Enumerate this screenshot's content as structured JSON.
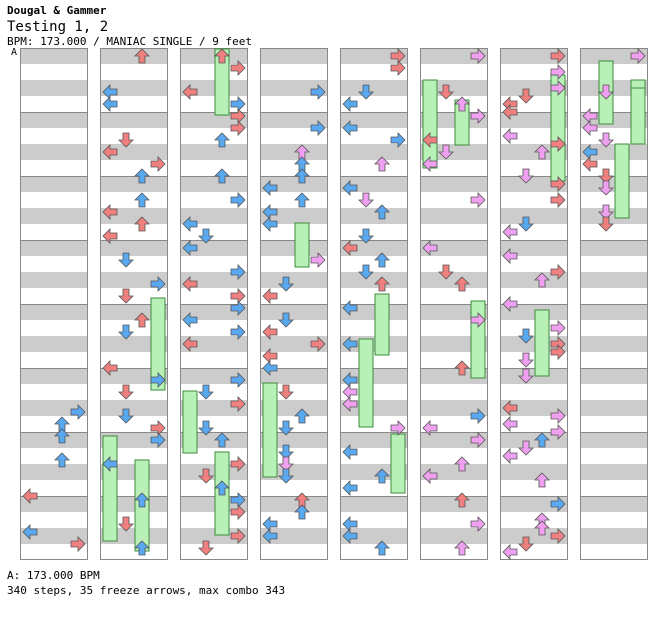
{
  "header": {
    "artist": "Dougal & Gammer",
    "title": "Testing 1, 2",
    "info": "BPM: 173.000 / MANIAC SINGLE / 9 feet"
  },
  "bpm_marker": "A",
  "footer": {
    "bpm_legend": "A: 173.000 BPM",
    "stats": "340 steps, 35 freeze arrows, max combo 343"
  },
  "colors": {
    "red": "#f08080",
    "blue": "#5aa8f0",
    "pink": "#f0a0f0",
    "freeze": "#b8f0b8",
    "stripe": "#cccccc",
    "border": "#888888"
  },
  "icons": [
    "arrow-left-icon",
    "arrow-down-icon",
    "arrow-up-icon",
    "arrow-right-icon"
  ],
  "chart": {
    "columns": 8,
    "measures_per_column": 8,
    "lanes": [
      "left",
      "down",
      "up",
      "right"
    ]
  }
}
